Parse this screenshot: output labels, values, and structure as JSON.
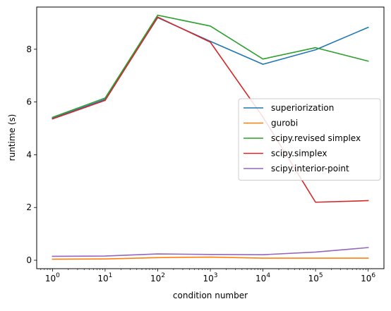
{
  "chart_data": {
    "type": "line",
    "title": "",
    "xlabel": "condition number",
    "ylabel": "runtime (s)",
    "xscale": "log",
    "x": [
      1,
      10,
      100,
      1000,
      10000,
      100000,
      1000000
    ],
    "xticks": [
      {
        "base": "10",
        "exp": "0"
      },
      {
        "base": "10",
        "exp": "1"
      },
      {
        "base": "10",
        "exp": "2"
      },
      {
        "base": "10",
        "exp": "3"
      },
      {
        "base": "10",
        "exp": "4"
      },
      {
        "base": "10",
        "exp": "5"
      },
      {
        "base": "10",
        "exp": "6"
      }
    ],
    "yticks": [
      "0",
      "2",
      "4",
      "6",
      "8"
    ],
    "yticks_values": [
      0,
      2,
      4,
      6,
      8
    ],
    "ylim": [
      -0.32,
      9.6
    ],
    "xlim_log10": [
      -0.3,
      6.3
    ],
    "grid": false,
    "legend_position": "center-right",
    "series": [
      {
        "name": "superiorization",
        "color": "#1f77b4",
        "values": [
          5.38,
          6.1,
          9.2,
          8.3,
          7.43,
          7.98,
          8.83
        ]
      },
      {
        "name": "gurobi",
        "color": "#ff7f0e",
        "values": [
          0.04,
          0.05,
          0.1,
          0.12,
          0.08,
          0.08,
          0.08
        ]
      },
      {
        "name": "scipy.revised simplex",
        "color": "#2ca02c",
        "values": [
          5.42,
          6.15,
          9.29,
          8.88,
          7.63,
          8.06,
          7.55
        ]
      },
      {
        "name": "scipy.simplex",
        "color": "#d62728",
        "values": [
          5.36,
          6.06,
          9.22,
          8.27,
          5.43,
          2.2,
          2.26
        ]
      },
      {
        "name": "scipy.interior-point",
        "color": "#9467bd",
        "values": [
          0.15,
          0.16,
          0.24,
          0.22,
          0.21,
          0.31,
          0.48
        ]
      }
    ]
  }
}
